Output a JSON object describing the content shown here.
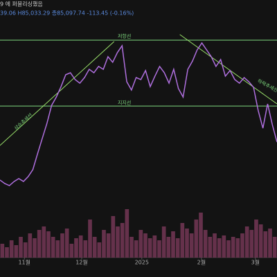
{
  "header": {
    "title": "9 에 퍼블리싱했음",
    "ohlc": "39.06 H85,033.29 종85,097.74 -113.45 (-0.16%)"
  },
  "chart_data": [
    {
      "type": "line",
      "color": "#b070e0",
      "xlim": [
        0,
        59
      ],
      "ylim": [
        0,
        100
      ],
      "xticks": [
        {
          "value": 5.2,
          "label": "11월"
        },
        {
          "value": 17.4,
          "label": "12월"
        },
        {
          "value": 30.2,
          "label": "2025"
        },
        {
          "value": 42.9,
          "label": "2월"
        },
        {
          "value": 54.4,
          "label": "3월"
        }
      ],
      "x": [
        0,
        1,
        2,
        3,
        4,
        5,
        6,
        7,
        8,
        9,
        10,
        11,
        12,
        13,
        14,
        15,
        16,
        17,
        18,
        19,
        20,
        21,
        22,
        23,
        24,
        25,
        26,
        27,
        28,
        29,
        30,
        31,
        32,
        33,
        34,
        35,
        36,
        37,
        38,
        39,
        40,
        41,
        42,
        43,
        44,
        45,
        46,
        47,
        48,
        49,
        50,
        51,
        52,
        53,
        54,
        55,
        56,
        57,
        58,
        59
      ],
      "values": [
        7.7,
        5.8,
        4.6,
        6.9,
        8.5,
        6.9,
        9.6,
        13.5,
        22.3,
        30.8,
        39.2,
        49.2,
        53.8,
        59.6,
        66.2,
        67.3,
        63.5,
        61.5,
        64.6,
        69.2,
        67.3,
        70.8,
        69.2,
        76.2,
        73.1,
        78.5,
        82.3,
        62.3,
        57.7,
        64.6,
        63.5,
        68.5,
        59.6,
        65.4,
        70.8,
        67.3,
        61.5,
        69.2,
        58.5,
        53.8,
        69.2,
        73.8,
        80,
        83.8,
        80,
        76.2,
        70.8,
        74.6,
        65.4,
        68.5,
        63.5,
        61.5,
        64.6,
        62.3,
        59.2,
        46.2,
        36.5,
        50,
        38.5,
        28.8
      ],
      "lines": [
        {
          "color": "#7fd97f",
          "x": [
            0,
            59
          ],
          "y": [
            85.4,
            85.4
          ]
        },
        {
          "color": "#7fd97f",
          "x": [
            0,
            59
          ],
          "y": [
            48.8,
            48.8
          ]
        },
        {
          "color": "#9be36b",
          "x": [
            0,
            24.3
          ],
          "y": [
            26.9,
            84.6
          ]
        },
        {
          "color": "#9be36b",
          "x": [
            38.3,
            59
          ],
          "y": [
            88.5,
            50
          ]
        }
      ],
      "annotations": [
        {
          "text": "저항선",
          "x": 26.5,
          "y": 87.5
        },
        {
          "text": "지지선",
          "x": 26.5,
          "y": 50.5
        },
        {
          "text": "상승추세선",
          "x": 5,
          "y": 40
        },
        {
          "text": "하락추세선",
          "x": 57,
          "y": 60
        }
      ]
    },
    {
      "type": "bar",
      "color": "#7a3a5a",
      "ylim": [
        0,
        100
      ],
      "values": [
        20,
        15,
        25,
        18,
        30,
        22,
        35,
        28,
        40,
        45,
        38,
        30,
        25,
        35,
        42,
        20,
        28,
        32,
        25,
        55,
        30,
        22,
        40,
        35,
        60,
        45,
        50,
        70,
        30,
        25,
        40,
        35,
        28,
        32,
        25,
        45,
        30,
        38,
        28,
        50,
        42,
        35,
        55,
        65,
        40,
        30,
        35,
        28,
        32,
        25,
        30,
        28,
        35,
        45,
        40,
        55,
        48,
        38,
        42,
        30
      ]
    }
  ]
}
